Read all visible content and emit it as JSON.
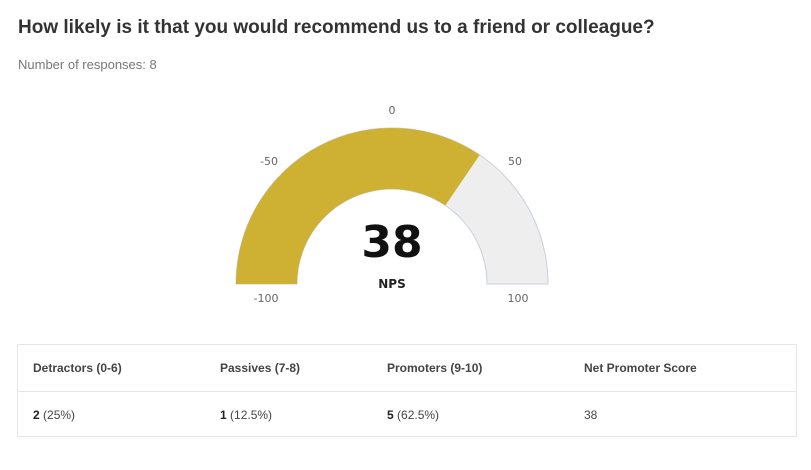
{
  "question": "How likely is it that you would recommend us to a friend or colleague?",
  "responses_text": "Number of responses: 8",
  "colors": {
    "filled": "#ceb032",
    "empty": "#eeeeee",
    "border": "#c8d0db"
  },
  "chart_data": {
    "type": "gauge",
    "value": 38,
    "value_label": "NPS",
    "min": -100,
    "max": 100,
    "ticks": [
      -100,
      -50,
      0,
      50,
      100
    ]
  },
  "table": {
    "headers": [
      "Detractors (0-6)",
      "Passives (7-8)",
      "Promoters (9-10)",
      "Net Promoter Score"
    ],
    "detractors": {
      "count": "2",
      "pct": "(25%)"
    },
    "passives": {
      "count": "1",
      "pct": "(12.5%)"
    },
    "promoters": {
      "count": "5",
      "pct": "(62.5%)"
    },
    "nps": "38"
  }
}
